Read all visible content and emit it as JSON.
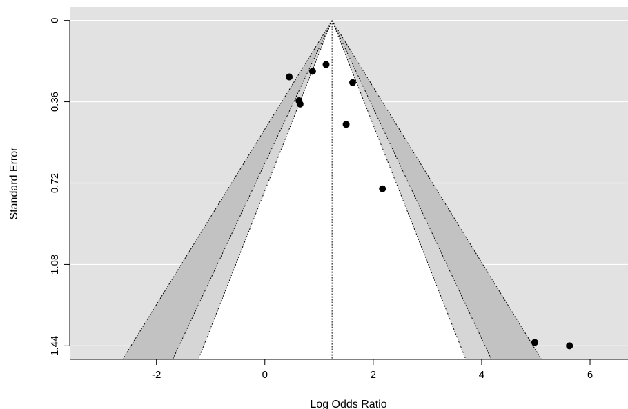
{
  "chart_data": {
    "type": "scatter",
    "subtype": "funnel-plot",
    "title": "",
    "xlabel": "Log Odds Ratio",
    "ylabel": "Standard Error",
    "xlim": [
      -3.6,
      6.7
    ],
    "ylim": [
      1.5,
      -0.06
    ],
    "y_reversed": true,
    "x_ticks": [
      -2,
      0,
      2,
      4,
      6
    ],
    "x_tick_labels": [
      "-2",
      "0",
      "2",
      "4",
      "6"
    ],
    "y_ticks": [
      0,
      0.36,
      0.72,
      1.08,
      1.44
    ],
    "y_tick_labels": [
      "0",
      "0.36",
      "0.72",
      "1.08",
      "1.44"
    ],
    "grid": true,
    "background_color": "#e2e2e2",
    "region_outer_color": "#c2c2c2",
    "region_middle_color": "#d6d6d6",
    "region_inner_color": "#ffffff",
    "point_color": "#000000",
    "summary_estimate": 1.24,
    "contour_z_values": [
      1.645,
      1.96,
      2.576
    ],
    "points": [
      {
        "x": 0.45,
        "y": 0.25
      },
      {
        "x": 0.88,
        "y": 0.225
      },
      {
        "x": 1.13,
        "y": 0.195
      },
      {
        "x": 1.62,
        "y": 0.275
      },
      {
        "x": 0.63,
        "y": 0.355
      },
      {
        "x": 0.65,
        "y": 0.37
      },
      {
        "x": 1.5,
        "y": 0.46
      },
      {
        "x": 2.17,
        "y": 0.745
      },
      {
        "x": 4.98,
        "y": 1.425
      },
      {
        "x": 5.62,
        "y": 1.44
      }
    ]
  }
}
